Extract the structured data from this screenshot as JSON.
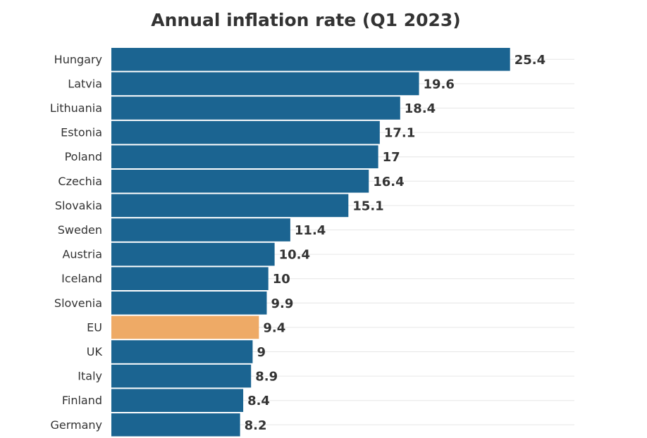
{
  "chart_data": {
    "type": "bar",
    "orientation": "horizontal",
    "title": "Annual inflation rate (Q1 2023)",
    "categories": [
      "Hungary",
      "Latvia",
      "Lithuania",
      "Estonia",
      "Poland",
      "Czechia",
      "Slovakia",
      "Sweden",
      "Austria",
      "Iceland",
      "Slovenia",
      "EU",
      "UK",
      "Italy",
      "Finland",
      "Germany"
    ],
    "values": [
      25.4,
      19.6,
      18.4,
      17.1,
      17,
      16.4,
      15.1,
      11.4,
      10.4,
      10,
      9.9,
      9.4,
      9,
      8.9,
      8.4,
      8.2
    ],
    "value_labels": [
      "25.4",
      "19.6",
      "18.4",
      "17.1",
      "17",
      "16.4",
      "15.1",
      "11.4",
      "10.4",
      "10",
      "9.9",
      "9.4",
      "9",
      "8.9",
      "8.4",
      "8.2"
    ],
    "highlight_category": "EU",
    "xlim": [
      0,
      29.5
    ],
    "grid": true,
    "colors": {
      "bar": "#1b6491",
      "highlight": "#eeaa66",
      "grid": "#e6e6e6",
      "text": "#333333"
    }
  }
}
